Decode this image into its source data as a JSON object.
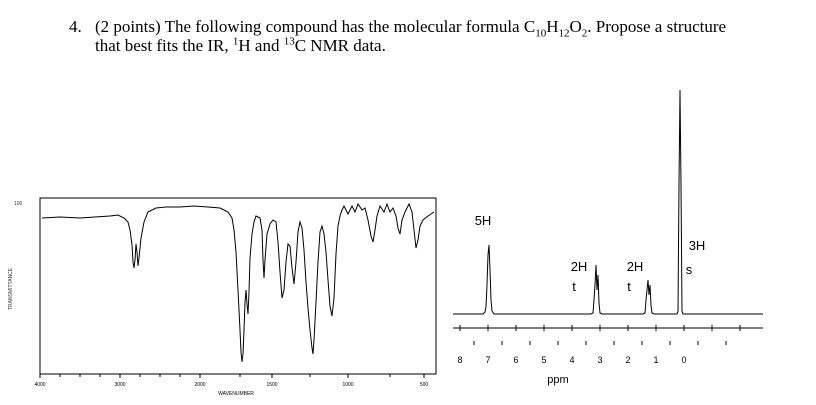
{
  "question": {
    "number": "4.",
    "line1_before_formula": "(2 points) The following compound has the molecular formula C",
    "sub_c": "10",
    "formula_h": "H",
    "sub_h": "12",
    "formula_o": "O",
    "sub_o": "2",
    "line1_after_formula": ". Propose a structure",
    "line2_before_h": "that best fits the IR, ",
    "sup_1": "1",
    "line2_h_and": "H and ",
    "sup_13": "13",
    "line2_end": "C NMR data."
  },
  "ir_spectrum": {
    "y_top_label": "100",
    "y_axis_label": "TRANSMITTANCE",
    "x_tick_labels": [
      "4000",
      "3000",
      "2000",
      "1500",
      "1000",
      "500"
    ],
    "x_axis_label": "WAVENUMBER"
  },
  "nmr_spectrum": {
    "x_axis_label": "ppm",
    "x_ticks": [
      "8",
      "7",
      "6",
      "5",
      "4",
      "3",
      "2",
      "1",
      "0"
    ],
    "peaks": [
      {
        "integration": "5H",
        "multiplicity": "",
        "shift_ppm": 7.2
      },
      {
        "integration": "2H",
        "multiplicity": "t",
        "shift_ppm": 4.3
      },
      {
        "integration": "2H",
        "multiplicity": "t",
        "shift_ppm": 2.9
      },
      {
        "integration": "3H",
        "multiplicity": "s",
        "shift_ppm": 2.0
      }
    ]
  }
}
